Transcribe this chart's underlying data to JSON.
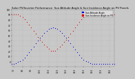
{
  "title": "Solar PV/Inverter Performance  Sun Altitude Angle & Sun Incidence Angle on PV Panels",
  "title_fontsize": 2.8,
  "bg_color": "#c8c8c8",
  "plot_bg_color": "#c8c8c8",
  "series": [
    {
      "label": "Sun Altitude Angle",
      "color": "#0000dd",
      "marker": ".",
      "markersize": 0.8,
      "x": [
        0,
        0.5,
        1,
        1.5,
        2,
        2.5,
        3,
        3.5,
        4,
        4.5,
        5,
        5.5,
        6,
        6.5,
        7,
        7.5,
        8,
        8.5,
        9,
        9.5,
        10,
        10.5,
        11,
        11.5,
        12,
        12.5,
        13,
        13.5,
        14,
        14.5,
        15,
        15.5,
        16,
        16.5,
        17,
        17.5,
        18,
        18.5,
        19,
        19.5,
        20,
        20.5,
        21,
        21.5,
        22,
        22.5,
        23,
        23.5
      ],
      "y": [
        -5,
        -4,
        -3,
        -1,
        1,
        4,
        8,
        13,
        18,
        23,
        29,
        35,
        40,
        45,
        50,
        55,
        59,
        62,
        64,
        65,
        64,
        62,
        59,
        55,
        50,
        45,
        40,
        35,
        29,
        23,
        18,
        13,
        8,
        4,
        1,
        -1,
        -3,
        -4,
        -5,
        -5,
        -5,
        -5,
        -5,
        -5,
        -5,
        -5,
        -5,
        -5
      ]
    },
    {
      "label": "Sun Incidence Angle on PV",
      "color": "#dd0000",
      "marker": ".",
      "markersize": 0.8,
      "x": [
        0,
        0.5,
        1,
        1.5,
        2,
        2.5,
        3,
        3.5,
        4,
        4.5,
        5,
        5.5,
        6,
        6.5,
        7,
        7.5,
        8,
        8.5,
        9,
        9.5,
        10,
        10.5,
        11,
        11.5,
        12,
        12.5,
        13,
        13.5,
        14,
        14.5,
        15,
        15.5,
        16,
        16.5,
        17,
        17.5,
        18,
        18.5,
        19,
        19.5,
        20,
        20.5,
        21,
        21.5,
        22,
        22.5,
        23,
        23.5
      ],
      "y": [
        90,
        90,
        90,
        90,
        88,
        85,
        81,
        76,
        71,
        65,
        59,
        53,
        47,
        42,
        37,
        32,
        28,
        24,
        21,
        20,
        21,
        24,
        28,
        32,
        37,
        42,
        47,
        53,
        59,
        65,
        71,
        76,
        81,
        85,
        88,
        90,
        90,
        90,
        90,
        90,
        90,
        90,
        90,
        90,
        90,
        90,
        90,
        90
      ]
    }
  ],
  "xlim": [
    0,
    23.5
  ],
  "ylim": [
    -10,
    100
  ],
  "yticks": [
    0,
    10,
    20,
    30,
    40,
    50,
    60,
    70,
    80,
    90,
    100
  ],
  "ytick_labels": [
    "0",
    "10",
    "20",
    "30",
    "40",
    "50",
    "60",
    "70",
    "80",
    "90",
    "100"
  ],
  "xtick_positions": [
    0.5,
    2.5,
    4.5,
    6.5,
    8.5,
    10.5,
    12.5,
    14.5,
    16.5,
    18.5,
    20.5,
    22.5
  ],
  "xtick_labels": [
    "7:0",
    "8:0",
    "9:0",
    "10:0",
    "11:0",
    "12:0",
    "13:0",
    "14:0",
    "15:0",
    "16:0",
    "17:0",
    "18:0"
  ],
  "grid_color": "#aaaaaa",
  "tick_fontsize": 2.0,
  "legend_fontsize": 2.2,
  "legend_color_1": "#0000dd",
  "legend_color_2": "#dd0000"
}
